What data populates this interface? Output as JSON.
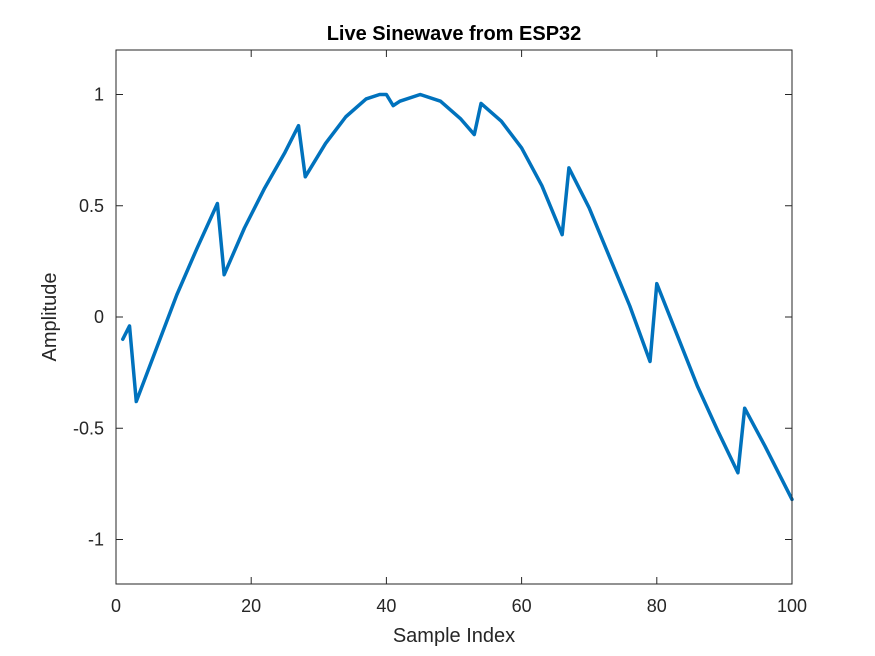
{
  "chart_data": {
    "type": "line",
    "title": "Live Sinewave from ESP32",
    "xlabel": "Sample Index",
    "ylabel": "Amplitude",
    "xlim": [
      0,
      100
    ],
    "ylim": [
      -1.2,
      1.2
    ],
    "xticks": [
      0,
      20,
      40,
      60,
      80,
      100
    ],
    "yticks": [
      1,
      0.5,
      0,
      -0.5,
      -1
    ],
    "xtick_labels": [
      "0",
      "20",
      "40",
      "60",
      "80",
      "100"
    ],
    "ytick_labels": [
      "1",
      "0.5",
      "0",
      "-0.5",
      "-1"
    ],
    "grid": false,
    "legend": "none",
    "series_color": "#0072BD",
    "x": [
      1,
      2,
      3,
      6,
      9,
      12,
      15,
      16,
      19,
      22,
      25,
      27,
      28,
      31,
      34,
      37,
      39,
      40,
      41,
      42,
      45,
      48,
      51,
      53,
      54,
      57,
      60,
      63,
      66,
      67,
      70,
      73,
      76,
      79,
      80,
      83,
      86,
      89,
      92,
      93,
      96,
      100
    ],
    "y": [
      -0.1,
      -0.04,
      -0.38,
      -0.14,
      0.1,
      0.31,
      0.51,
      0.19,
      0.4,
      0.58,
      0.74,
      0.86,
      0.63,
      0.78,
      0.9,
      0.98,
      1.0,
      1.0,
      0.95,
      0.97,
      1.0,
      0.97,
      0.89,
      0.82,
      0.96,
      0.88,
      0.76,
      0.59,
      0.37,
      0.67,
      0.49,
      0.27,
      0.05,
      -0.2,
      0.15,
      -0.08,
      -0.31,
      -0.51,
      -0.7,
      -0.41,
      -0.58,
      -0.82
    ]
  }
}
